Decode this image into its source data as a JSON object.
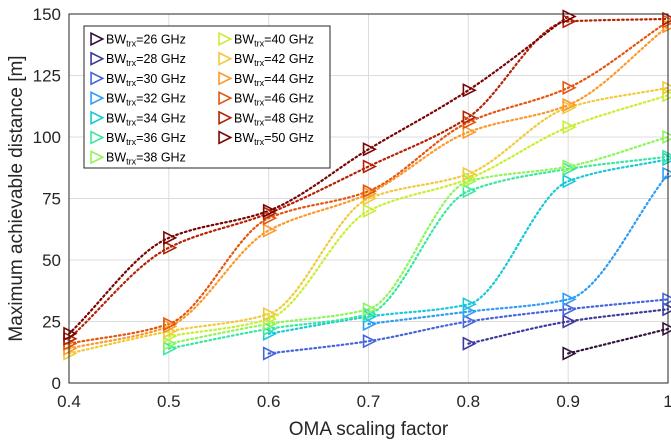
{
  "chart_data": {
    "type": "line",
    "title": "",
    "xlabel": "OMA scaling factor",
    "ylabel": "Maximum achievable distance [m]",
    "xlim": [
      0.4,
      1.0
    ],
    "ylim": [
      0,
      150
    ],
    "xticks": [
      "0.4",
      "0.5",
      "0.6",
      "0.7",
      "0.8",
      "0.9",
      "1"
    ],
    "yticks": [
      "0",
      "25",
      "50",
      "75",
      "100",
      "125",
      "150"
    ],
    "grid": true,
    "legend_position": "top-left",
    "marker": "triangle-right",
    "line_style": "dotted",
    "x": [
      0.4,
      0.5,
      0.6,
      0.7,
      0.8,
      0.9,
      1.0
    ],
    "series": [
      {
        "name": "26",
        "color": "#30123b",
        "values": [
          null,
          null,
          null,
          null,
          null,
          12,
          22
        ]
      },
      {
        "name": "28",
        "color": "#3e3a9c",
        "values": [
          null,
          null,
          null,
          null,
          16,
          25,
          30
        ]
      },
      {
        "name": "30",
        "color": "#4465dc",
        "values": [
          null,
          null,
          12,
          17,
          25,
          30,
          34
        ]
      },
      {
        "name": "32",
        "color": "#2f9df5",
        "values": [
          null,
          null,
          null,
          24,
          29,
          34,
          85
        ]
      },
      {
        "name": "34",
        "color": "#19c9d6",
        "values": [
          null,
          null,
          20,
          27,
          32,
          82,
          91
        ]
      },
      {
        "name": "36",
        "color": "#38e89e",
        "values": [
          null,
          14,
          22,
          28,
          78,
          87,
          92
        ]
      },
      {
        "name": "38",
        "color": "#8ef55b",
        "values": [
          null,
          16,
          24,
          30,
          82,
          88,
          100
        ]
      },
      {
        "name": "40",
        "color": "#c9ef34",
        "values": [
          null,
          19,
          26,
          70,
          83,
          104,
          117
        ]
      },
      {
        "name": "42",
        "color": "#f2c93a",
        "values": [
          12,
          21,
          28,
          75,
          85,
          112,
          120
        ]
      },
      {
        "name": "44",
        "color": "#fb9a2a",
        "values": [
          14,
          23,
          62,
          77,
          102,
          113,
          145
        ]
      },
      {
        "name": "46",
        "color": "#e4560f",
        "values": [
          16,
          24,
          67,
          78,
          106,
          120,
          147
        ]
      },
      {
        "name": "48",
        "color": "#b52205",
        "values": [
          18,
          55,
          69,
          88,
          108,
          147,
          148
        ]
      },
      {
        "name": "50",
        "color": "#7a0403",
        "values": [
          20,
          59,
          70,
          95,
          119,
          149,
          null
        ]
      }
    ]
  },
  "legend": {
    "prefix": "BW",
    "subscript": "trx",
    "unit": "GHz"
  }
}
